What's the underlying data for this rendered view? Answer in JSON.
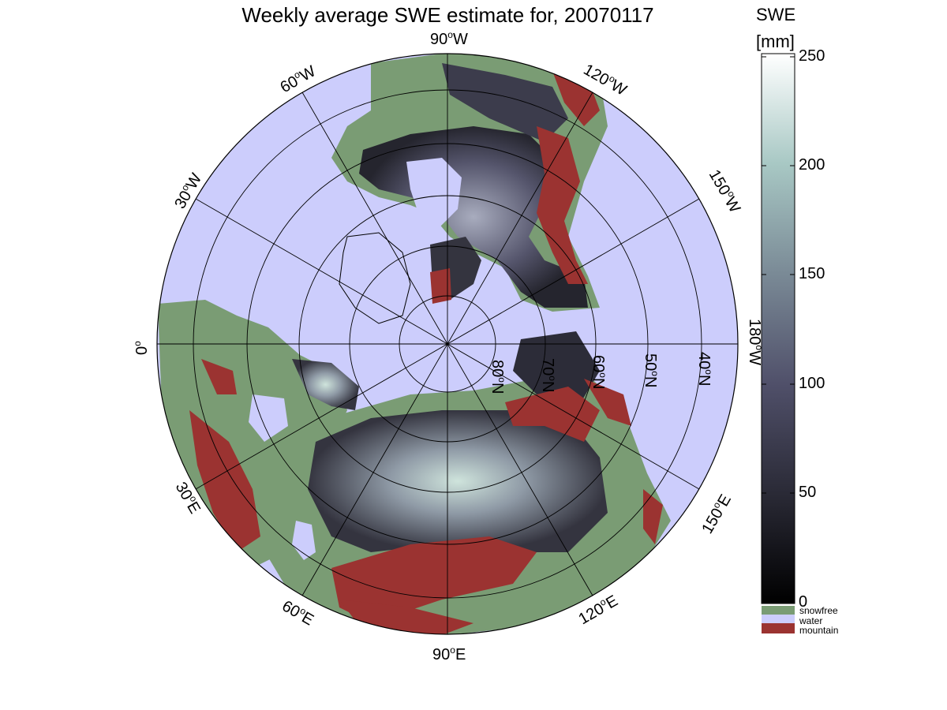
{
  "title": "Weekly average SWE estimate for, 20070117",
  "colorbar": {
    "title_line1": "SWE",
    "title_line2": "[mm]",
    "ticks": [
      "0",
      "50",
      "100",
      "150",
      "200",
      "250"
    ],
    "range": [
      0,
      250
    ],
    "categories": [
      {
        "label": "snowfree",
        "color": "#7a9c74"
      },
      {
        "label": "water",
        "color": "#cccdfc"
      },
      {
        "label": "mountain",
        "color": "#9b3331"
      }
    ]
  },
  "longitude_labels": {
    "lon_0": "0",
    "lon_30w": "30",
    "lon_60w": "60",
    "lon_90w": "90",
    "lon_120w": "120",
    "lon_150w": "150",
    "lon_180w": "180",
    "lon_30e": "30",
    "lon_60e": "60",
    "lon_90e": "90",
    "lon_120e": "120",
    "lon_150e": "150",
    "degree_mark": "o",
    "west": "W",
    "east": "E"
  },
  "latitude_labels": {
    "lat_40": "40",
    "lat_50": "50",
    "lat_60": "60",
    "lat_70": "70",
    "lat_80": "80",
    "degree_mark": "o",
    "north": "N"
  },
  "colors": {
    "water": "#cccdfc",
    "snowfree": "#7a9c74",
    "mountain": "#9b3331",
    "swe_low": "#0b0b10",
    "swe_mid": "#5a5a78",
    "swe_high": "#f7fbf9"
  }
}
